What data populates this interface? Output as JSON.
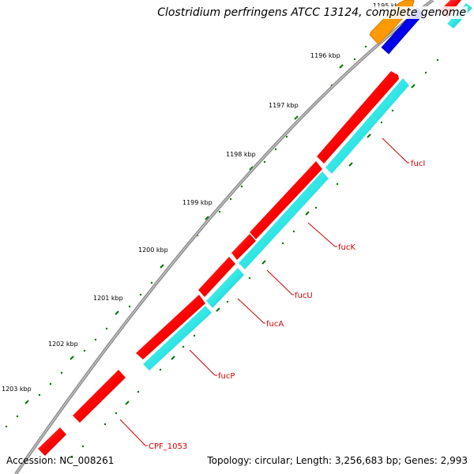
{
  "title": "Clostridium perfringens ATCC 13124, complete genome",
  "accession_text": "Accession: NC_008261",
  "summary_text": "Topology: circular; Length: 3,256,683 bp; Genes: 2,993",
  "ticks": [
    "1195 kbp",
    "1196 kbp",
    "1197 kbp",
    "1198 kbp",
    "1199 kbp",
    "1200 kbp",
    "1201 kbp",
    "1202 kbp",
    "1203 kbp"
  ],
  "genes": [
    "fucI",
    "fucK",
    "fucU",
    "fucA",
    "fucP",
    "CPF_1053"
  ],
  "colors": {
    "backbone": "#8c8c8c",
    "forward_gene": "#ff0000",
    "reverse_gene": "#33e6e6",
    "orange_gene": "#ff9900",
    "blue_gene": "#0000ee",
    "tick_green": "#007700",
    "label_red": "#d40000"
  }
}
